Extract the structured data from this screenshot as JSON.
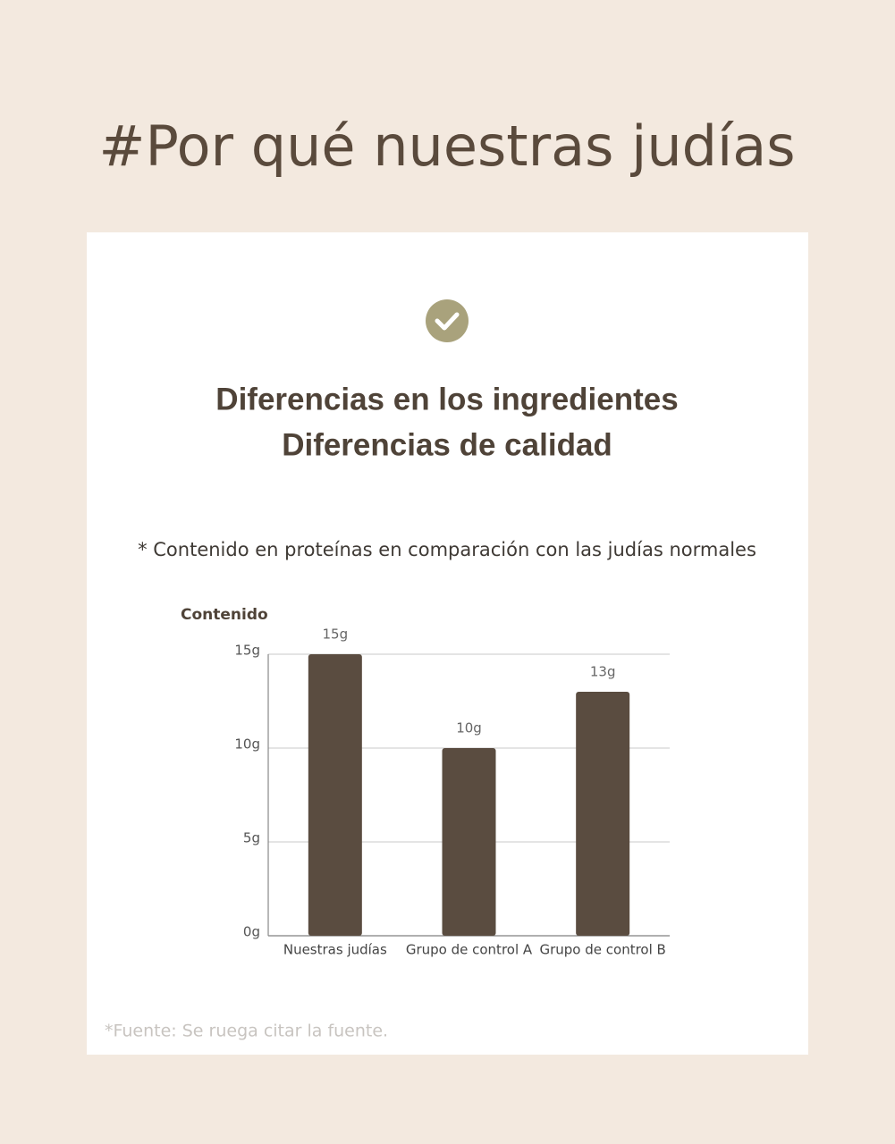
{
  "header": {
    "title": "#Por qué nuestras judías"
  },
  "card": {
    "headings": [
      "Diferencias en los ingredientes",
      "Diferencias de calidad"
    ],
    "note": "* Contenido en proteínas en comparación con las judías normales",
    "source": "*Fuente: Se ruega citar la fuente."
  },
  "chart_data": {
    "type": "bar",
    "y_label": "Contenido",
    "categories": [
      "Nuestras judías",
      "Grupo de control A",
      "Grupo de control B"
    ],
    "values": [
      15,
      10,
      13
    ],
    "value_labels": [
      "15g",
      "10g",
      "13g"
    ],
    "color": "#5a4c40",
    "ylim": [
      0,
      15
    ],
    "yticks": [
      {
        "value": 0,
        "label": "0g"
      },
      {
        "value": 5,
        "label": "5g"
      },
      {
        "value": 10,
        "label": "10g"
      },
      {
        "value": 15,
        "label": "15g"
      }
    ],
    "grid": true
  }
}
